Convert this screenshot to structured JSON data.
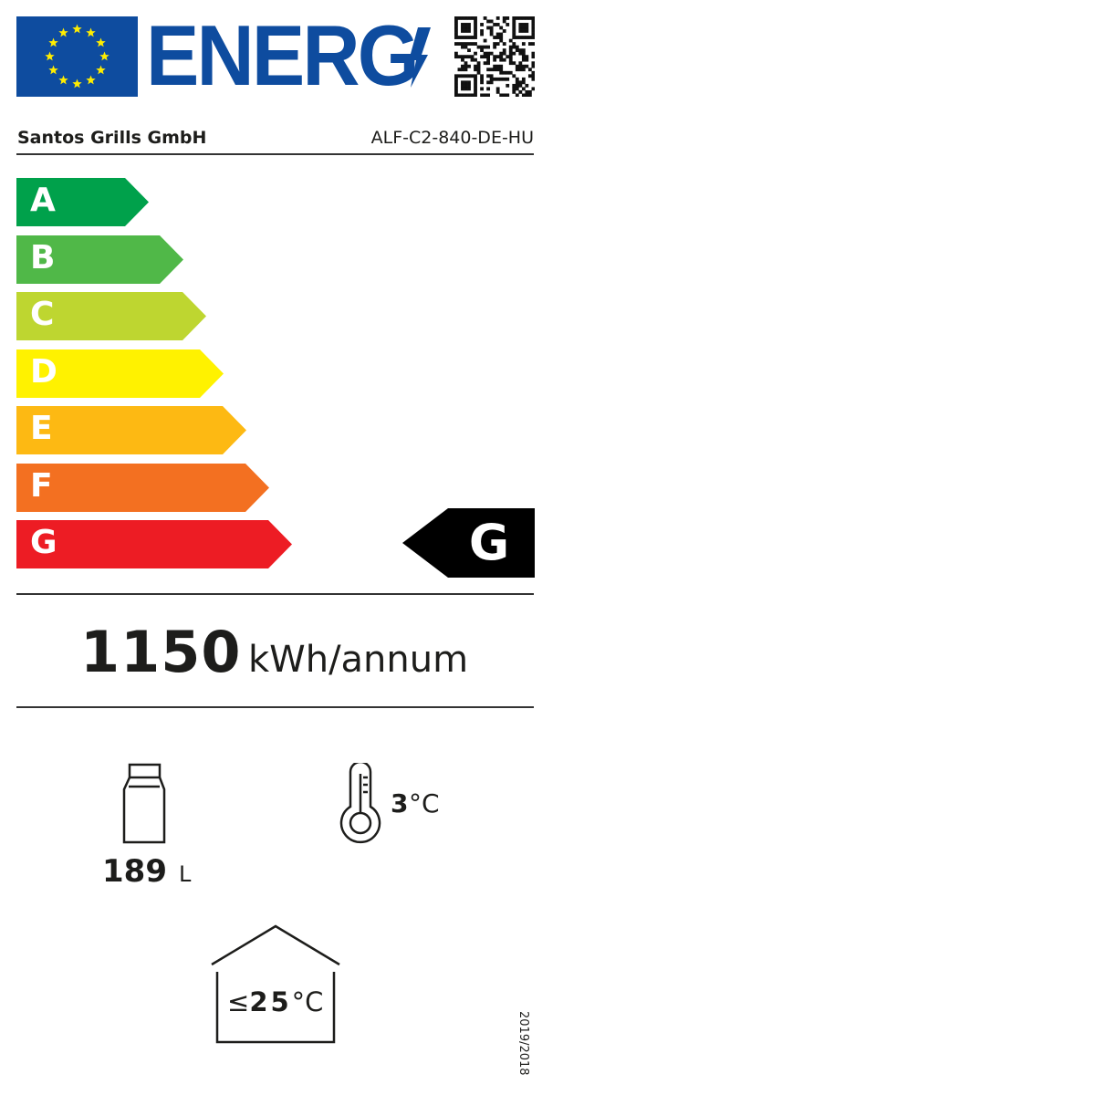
{
  "header": {
    "logo_text": "ENERG",
    "flag_color": "#0e4c9f",
    "star_color": "#ffed00",
    "qr_icon": "qr-code-icon"
  },
  "supplier": "Santos Grills GmbH",
  "model": "ALF-C2-840-DE-HU",
  "scale": [
    {
      "label": "A",
      "color": "#00a14b"
    },
    {
      "label": "B",
      "color": "#50b848"
    },
    {
      "label": "C",
      "color": "#bed630"
    },
    {
      "label": "D",
      "color": "#fff200"
    },
    {
      "label": "E",
      "color": "#fdb913"
    },
    {
      "label": "F",
      "color": "#f37021"
    },
    {
      "label": "G",
      "color": "#ed1c24"
    }
  ],
  "rating": "G",
  "energy": {
    "value": "1150",
    "unit": "kWh/annum"
  },
  "volume": {
    "value": "189",
    "unit": "L"
  },
  "temperature": {
    "value": "3",
    "unit": "°C"
  },
  "ambient": {
    "prefix": "≤",
    "value": "25",
    "unit": "°C"
  },
  "regulation": "2019/2018"
}
